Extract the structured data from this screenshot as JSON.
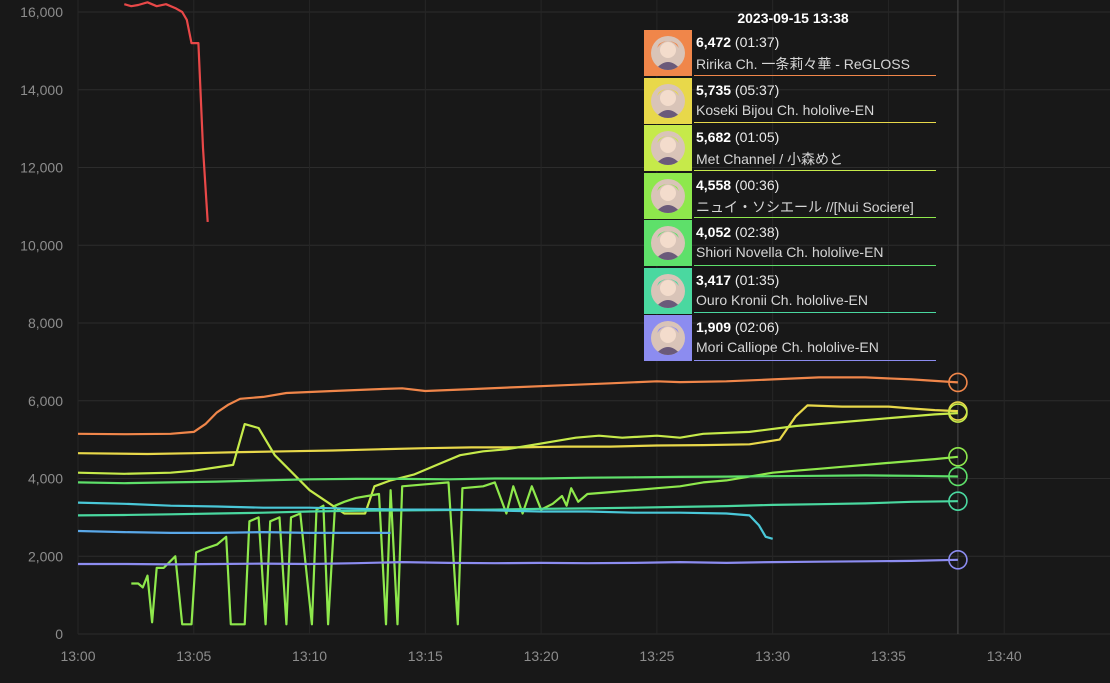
{
  "tooltip": {
    "time": "2023-09-15 13:38",
    "items": [
      {
        "count": "6,472",
        "duration": "(01:37)",
        "name": "Ririka Ch. 一条莉々華 - ReGLOSS",
        "color": "#f0864a"
      },
      {
        "count": "5,735",
        "duration": "(05:37)",
        "name": "Koseki Bijou Ch. hololive-EN",
        "color": "#e8d84a"
      },
      {
        "count": "5,682",
        "duration": "(01:05)",
        "name": "Met Channel / 小森めと",
        "color": "#c6ea4a"
      },
      {
        "count": "4,558",
        "duration": "(00:36)",
        "name": "ニュイ・ソシエール //[Nui Sociere]",
        "color": "#8ee84c"
      },
      {
        "count": "4,052",
        "duration": "(02:38)",
        "name": "Shiori Novella Ch. hololive-EN",
        "color": "#5ee06a"
      },
      {
        "count": "3,417",
        "duration": "(01:35)",
        "name": "Ouro Kronii Ch. hololive-EN",
        "color": "#4ad8a0"
      },
      {
        "count": "1,909",
        "duration": "(02:06)",
        "name": "Mori Calliope Ch. hololive-EN",
        "color": "#8c8cf0"
      }
    ]
  },
  "chart_data": {
    "type": "line",
    "xlabel": "",
    "ylabel": "",
    "ylim": [
      0,
      16000
    ],
    "xlim": [
      "13:00",
      "13:44"
    ],
    "yticks": [
      "0",
      "2,000",
      "4,000",
      "6,000",
      "8,000",
      "10,000",
      "12,000",
      "14,000",
      "16,000"
    ],
    "xticks": [
      "13:00",
      "13:05",
      "13:10",
      "13:15",
      "13:20",
      "13:25",
      "13:30",
      "13:35",
      "13:40"
    ],
    "hover_time": "13:38",
    "grid": true,
    "series": [
      {
        "color": "#e84848",
        "points": [
          [
            2.0,
            16200
          ],
          [
            2.3,
            16150
          ],
          [
            2.6,
            16180
          ],
          [
            3.0,
            16250
          ],
          [
            3.4,
            16150
          ],
          [
            3.8,
            16200
          ],
          [
            4.2,
            16100
          ],
          [
            4.5,
            16000
          ],
          [
            4.7,
            15800
          ],
          [
            4.9,
            15200
          ],
          [
            5.2,
            15200
          ],
          [
            5.4,
            12500
          ],
          [
            5.6,
            10600
          ]
        ]
      },
      {
        "color": "#f0864a",
        "points": [
          [
            0,
            5150
          ],
          [
            2,
            5140
          ],
          [
            4,
            5150
          ],
          [
            5,
            5200
          ],
          [
            5.5,
            5400
          ],
          [
            6,
            5700
          ],
          [
            6.5,
            5900
          ],
          [
            7,
            6050
          ],
          [
            8,
            6100
          ],
          [
            9,
            6200
          ],
          [
            11,
            6250
          ],
          [
            13,
            6300
          ],
          [
            14,
            6320
          ],
          [
            15,
            6250
          ],
          [
            17,
            6300
          ],
          [
            19,
            6350
          ],
          [
            21,
            6400
          ],
          [
            23,
            6450
          ],
          [
            25,
            6500
          ],
          [
            26,
            6480
          ],
          [
            28,
            6500
          ],
          [
            30,
            6550
          ],
          [
            32,
            6600
          ],
          [
            34,
            6600
          ],
          [
            36,
            6550
          ],
          [
            38,
            6472
          ]
        ]
      },
      {
        "color": "#e8d84a",
        "points": [
          [
            0,
            4650
          ],
          [
            3,
            4630
          ],
          [
            5,
            4650
          ],
          [
            7,
            4680
          ],
          [
            9,
            4700
          ],
          [
            11,
            4720
          ],
          [
            13,
            4750
          ],
          [
            15,
            4780
          ],
          [
            17,
            4800
          ],
          [
            19,
            4800
          ],
          [
            21,
            4820
          ],
          [
            23,
            4820
          ],
          [
            25,
            4850
          ],
          [
            27,
            4860
          ],
          [
            29,
            4880
          ],
          [
            30.3,
            5000
          ],
          [
            31,
            5600
          ],
          [
            31.5,
            5880
          ],
          [
            33,
            5850
          ],
          [
            35,
            5850
          ],
          [
            36,
            5800
          ],
          [
            37,
            5760
          ],
          [
            38,
            5735
          ]
        ]
      },
      {
        "color": "#c6ea4a",
        "points": [
          [
            0,
            4150
          ],
          [
            2,
            4120
          ],
          [
            4,
            4150
          ],
          [
            5,
            4200
          ],
          [
            6.7,
            4350
          ],
          [
            7.2,
            5400
          ],
          [
            7.8,
            5300
          ],
          [
            8.5,
            4600
          ],
          [
            9,
            4300
          ],
          [
            10,
            3700
          ],
          [
            11,
            3300
          ],
          [
            11.5,
            3100
          ],
          [
            12.4,
            3100
          ],
          [
            12.8,
            3800
          ],
          [
            13.5,
            3950
          ],
          [
            14.5,
            4100
          ],
          [
            15.5,
            4350
          ],
          [
            16.5,
            4600
          ],
          [
            17.5,
            4700
          ],
          [
            18.5,
            4750
          ],
          [
            19.5,
            4850
          ],
          [
            20.5,
            4950
          ],
          [
            21.5,
            5050
          ],
          [
            22.5,
            5100
          ],
          [
            23.5,
            5050
          ],
          [
            25,
            5100
          ],
          [
            26,
            5050
          ],
          [
            27,
            5150
          ],
          [
            29,
            5200
          ],
          [
            31,
            5350
          ],
          [
            33,
            5450
          ],
          [
            35,
            5550
          ],
          [
            37,
            5650
          ],
          [
            38,
            5682
          ]
        ]
      },
      {
        "color": "#8ee84c",
        "points": [
          [
            2.3,
            1300
          ],
          [
            2.6,
            1300
          ],
          [
            2.8,
            1200
          ],
          [
            3.0,
            1500
          ],
          [
            3.2,
            300
          ],
          [
            3.4,
            1700
          ],
          [
            3.7,
            1700
          ],
          [
            4.2,
            2000
          ],
          [
            4.5,
            250
          ],
          [
            4.9,
            250
          ],
          [
            5.1,
            2100
          ],
          [
            5.5,
            2200
          ],
          [
            6.0,
            2300
          ],
          [
            6.4,
            2500
          ],
          [
            6.6,
            250
          ],
          [
            7.2,
            250
          ],
          [
            7.4,
            2900
          ],
          [
            7.8,
            3000
          ],
          [
            8.1,
            250
          ],
          [
            8.3,
            2900
          ],
          [
            8.7,
            3000
          ],
          [
            9.0,
            250
          ],
          [
            9.2,
            3000
          ],
          [
            9.6,
            3100
          ],
          [
            10.1,
            250
          ],
          [
            10.3,
            3200
          ],
          [
            10.6,
            3300
          ],
          [
            10.8,
            250
          ],
          [
            11.1,
            3300
          ],
          [
            11.5,
            3400
          ],
          [
            12.0,
            3500
          ],
          [
            13.0,
            3600
          ],
          [
            13.3,
            250
          ],
          [
            13.5,
            3700
          ],
          [
            13.8,
            250
          ],
          [
            14.0,
            3800
          ],
          [
            15.0,
            3850
          ],
          [
            16.0,
            3900
          ],
          [
            16.4,
            250
          ],
          [
            16.6,
            3750
          ],
          [
            17.5,
            3800
          ],
          [
            18.0,
            3900
          ],
          [
            18.5,
            3100
          ],
          [
            18.8,
            3800
          ],
          [
            19.2,
            3100
          ],
          [
            19.6,
            3800
          ],
          [
            20.0,
            3200
          ],
          [
            20.5,
            3350
          ],
          [
            20.9,
            3550
          ],
          [
            21.1,
            3300
          ],
          [
            21.3,
            3750
          ],
          [
            21.6,
            3400
          ],
          [
            22,
            3600
          ],
          [
            23,
            3650
          ],
          [
            24,
            3700
          ],
          [
            25,
            3750
          ],
          [
            26,
            3800
          ],
          [
            27,
            3900
          ],
          [
            28,
            3950
          ],
          [
            29,
            4050
          ],
          [
            30,
            4150
          ],
          [
            31,
            4200
          ],
          [
            32,
            4250
          ],
          [
            33,
            4300
          ],
          [
            34,
            4350
          ],
          [
            35,
            4400
          ],
          [
            36,
            4450
          ],
          [
            37,
            4500
          ],
          [
            38,
            4558
          ]
        ]
      },
      {
        "color": "#5ee06a",
        "points": [
          [
            0,
            3900
          ],
          [
            2,
            3880
          ],
          [
            4,
            3900
          ],
          [
            6,
            3920
          ],
          [
            8,
            3950
          ],
          [
            10,
            3980
          ],
          [
            12,
            3990
          ],
          [
            14,
            3990
          ],
          [
            16,
            3980
          ],
          [
            18,
            4000
          ],
          [
            20,
            4000
          ],
          [
            22,
            4020
          ],
          [
            24,
            4030
          ],
          [
            26,
            4040
          ],
          [
            28,
            4050
          ],
          [
            30,
            4060
          ],
          [
            32,
            4070
          ],
          [
            34,
            4080
          ],
          [
            36,
            4070
          ],
          [
            38,
            4052
          ]
        ]
      },
      {
        "color": "#4ad8a0",
        "points": [
          [
            0,
            3050
          ],
          [
            2,
            3060
          ],
          [
            4,
            3080
          ],
          [
            6,
            3100
          ],
          [
            8,
            3120
          ],
          [
            10,
            3150
          ],
          [
            12,
            3170
          ],
          [
            14,
            3180
          ],
          [
            16,
            3190
          ],
          [
            18,
            3200
          ],
          [
            20,
            3220
          ],
          [
            22,
            3230
          ],
          [
            24,
            3250
          ],
          [
            26,
            3270
          ],
          [
            28,
            3290
          ],
          [
            30,
            3320
          ],
          [
            32,
            3340
          ],
          [
            34,
            3360
          ],
          [
            36,
            3400
          ],
          [
            38,
            3417
          ]
        ]
      },
      {
        "color": "#4ac8d8",
        "points": [
          [
            0,
            3380
          ],
          [
            2,
            3350
          ],
          [
            4,
            3300
          ],
          [
            6,
            3280
          ],
          [
            8,
            3250
          ],
          [
            10,
            3250
          ],
          [
            12,
            3220
          ],
          [
            14,
            3200
          ],
          [
            16,
            3200
          ],
          [
            18,
            3180
          ],
          [
            20,
            3150
          ],
          [
            22,
            3150
          ],
          [
            24,
            3120
          ],
          [
            26,
            3120
          ],
          [
            28,
            3100
          ],
          [
            29,
            3050
          ],
          [
            29.4,
            2800
          ],
          [
            29.7,
            2500
          ],
          [
            30.0,
            2450
          ]
        ]
      },
      {
        "color": "#5aa8e8",
        "points": [
          [
            0,
            2650
          ],
          [
            2,
            2620
          ],
          [
            4,
            2600
          ],
          [
            6,
            2600
          ],
          [
            8,
            2620
          ],
          [
            10,
            2600
          ],
          [
            12,
            2600
          ],
          [
            13.5,
            2600
          ]
        ]
      },
      {
        "color": "#8c8cf0",
        "points": [
          [
            0,
            1800
          ],
          [
            2,
            1800
          ],
          [
            4,
            1790
          ],
          [
            6,
            1800
          ],
          [
            8,
            1810
          ],
          [
            10,
            1800
          ],
          [
            12,
            1820
          ],
          [
            14,
            1850
          ],
          [
            16,
            1830
          ],
          [
            18,
            1820
          ],
          [
            20,
            1830
          ],
          [
            22,
            1820
          ],
          [
            24,
            1830
          ],
          [
            26,
            1850
          ],
          [
            28,
            1830
          ],
          [
            30,
            1850
          ],
          [
            32,
            1860
          ],
          [
            34,
            1870
          ],
          [
            36,
            1880
          ],
          [
            38,
            1909
          ]
        ]
      }
    ],
    "hover_markers": [
      {
        "color": "#f0864a",
        "y": 6472
      },
      {
        "color": "#e8d84a",
        "y": 5735
      },
      {
        "color": "#c6ea4a",
        "y": 5682
      },
      {
        "color": "#8ee84c",
        "y": 4558
      },
      {
        "color": "#5ee06a",
        "y": 4052
      },
      {
        "color": "#4ad8a0",
        "y": 3417
      },
      {
        "color": "#8c8cf0",
        "y": 1909
      }
    ]
  }
}
